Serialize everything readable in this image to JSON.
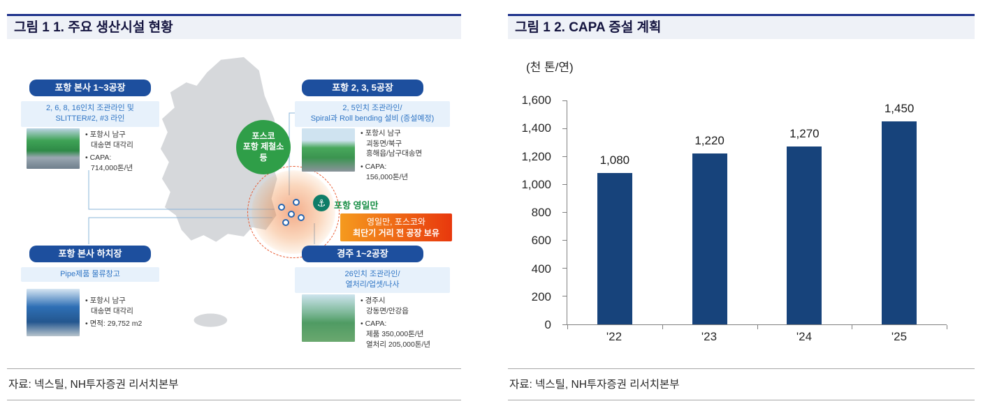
{
  "left_figure": {
    "title": "그림 1 1. 주요 생산시설 현황",
    "source": "자료: 넥스틸, NH투자증권 리서치본부",
    "map": {
      "posco_badge": "포스코\n포항 제철소\n등",
      "port_label": "포항 영일만",
      "highlight": {
        "line1": "영일만, 포스코와",
        "line2": "최단기 거리 전 공장 보유"
      }
    },
    "callouts": [
      {
        "title": "포항 본사 1~3공장",
        "subtitle": "2, 6, 8, 16인치 조관라인 및\nSLITTER#2, #3 라인",
        "bullets": [
          "포항시 남구\n대송면 대각리",
          "CAPA:\n714,000톤/년"
        ],
        "photo": "factory-green-roof-photo"
      },
      {
        "title": "포항 2, 3, 5공장",
        "subtitle": "2, 5인치 조관라인/\nSpiral과 Roll bending 설비 (증설예정)",
        "bullets": [
          "포항시 남구\n괴동면/북구\n흥해읍/남구대송면",
          "CAPA:\n156,000톤/년"
        ],
        "photo": "factory-green-building-photo"
      },
      {
        "title": "포항 본사 하치장",
        "subtitle": "Pipe제품 물류창고",
        "bullets": [
          "포항시 남구\n대송면 대각리",
          "면적: 29,752 m2"
        ],
        "photo": "warehouse-blue-photo"
      },
      {
        "title": "경주 1~2공장",
        "subtitle": "26인치 조관라인/\n열처리/업셋/나사",
        "bullets": [
          "경주시\n강동면/안강읍",
          "CAPA:\n제품 350,000톤/년\n열처리 205,000톤/년"
        ],
        "photo": "factory-field-photo"
      }
    ]
  },
  "right_figure": {
    "title": "그림 1 2. CAPA 증설 계획",
    "unit_label": "(천 톤/연)",
    "source": "자료: 넥스틸, NH투자증권 리서치본부"
  },
  "chart_data": {
    "type": "bar",
    "title": "그림 1 2. CAPA 증설 계획",
    "ylabel": "(천 톤/연)",
    "categories": [
      "'22",
      "'23",
      "'24",
      "'25"
    ],
    "values": [
      1080,
      1220,
      1270,
      1450
    ],
    "data_labels": [
      "1,080",
      "1,220",
      "1,270",
      "1,450"
    ],
    "ylim": [
      0,
      1600
    ],
    "yticks": [
      0,
      200,
      400,
      600,
      800,
      1000,
      1200,
      1400,
      1600
    ],
    "ytick_labels": [
      "0",
      "200",
      "400",
      "600",
      "800",
      "1,000",
      "1,200",
      "1,400",
      "1,600"
    ],
    "grid": false,
    "legend": false,
    "bar_color": "#17437b"
  },
  "colors": {
    "accent_navy": "#1b2f8a",
    "title_bg": "#eef1f7",
    "callout_header_bg": "#1d4f9e",
    "callout_sub_bg": "#e7f1fb",
    "callout_sub_text": "#2e74c4",
    "badge_green": "#2f9e48",
    "port_green": "#0f7d68",
    "highlight_from": "#f59a1e",
    "highlight_to": "#e8380d",
    "bar_navy": "#17437b"
  }
}
